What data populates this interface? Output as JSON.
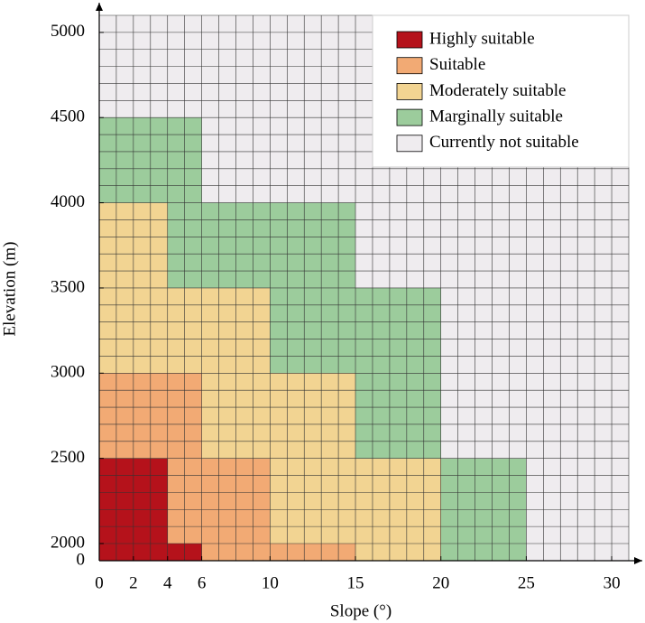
{
  "chart_data": {
    "type": "region",
    "x_label": "Slope (°)",
    "y_label": "Elevation (m)",
    "xlim": [
      0,
      31
    ],
    "xticks": [
      0,
      2,
      4,
      6,
      10,
      15,
      20,
      25,
      30
    ],
    "ylim": [
      0,
      5100
    ],
    "y_break": [
      0,
      2000
    ],
    "yticks": [
      0,
      2000,
      2500,
      3000,
      3500,
      4000,
      4500,
      5000
    ],
    "grid": true,
    "grid_step_x": 1,
    "grid_step_y": 100,
    "legend": "upper right",
    "series": [
      {
        "name": "Highly suitable",
        "color": "#b5121b",
        "rects": [
          [
            0,
            4,
            0,
            2500
          ],
          [
            4,
            6,
            0,
            2000
          ]
        ]
      },
      {
        "name": "Suitable",
        "color": "#f2aa74",
        "rects": [
          [
            0,
            6,
            2500,
            3000
          ],
          [
            4,
            10,
            2000,
            2500
          ],
          [
            6,
            15,
            0,
            2000
          ]
        ]
      },
      {
        "name": "Moderately suitable",
        "color": "#f2d492",
        "rects": [
          [
            0,
            4,
            3000,
            4000
          ],
          [
            4,
            10,
            3000,
            3500
          ],
          [
            6,
            10,
            2500,
            3000
          ],
          [
            10,
            15,
            2000,
            3000
          ],
          [
            15,
            20,
            0,
            2500
          ]
        ]
      },
      {
        "name": "Marginally suitable",
        "color": "#9ccc9c",
        "rects": [
          [
            0,
            6,
            4000,
            4500
          ],
          [
            4,
            15,
            3500,
            4000
          ],
          [
            10,
            15,
            3000,
            3500
          ],
          [
            15,
            20,
            2500,
            3500
          ],
          [
            20,
            25,
            0,
            2500
          ]
        ]
      },
      {
        "name": "Currently not suitable",
        "color": "#efecef",
        "rects": []
      }
    ]
  }
}
